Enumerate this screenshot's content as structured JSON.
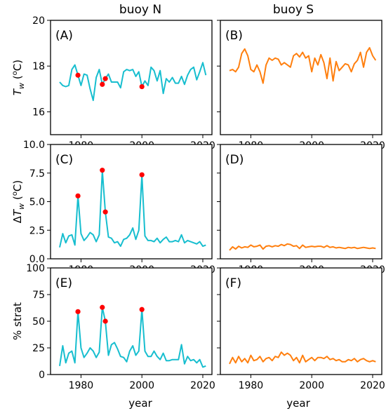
{
  "column_titles": [
    "buoy N",
    "buoy S"
  ],
  "x_label": "year",
  "colors": {
    "buoy_N": "#17becf",
    "buoy_S": "#ff7f0e",
    "marker": "#ff0000"
  },
  "chart_data": [
    {
      "panel": "(A)",
      "column": "buoy N",
      "type": "line",
      "ylabel": "T_w (°C)",
      "ylim": [
        15,
        20
      ],
      "yticks": [
        16,
        18,
        20
      ],
      "xlim": [
        1970,
        2023
      ],
      "xticks": [
        1980,
        2000,
        2020
      ],
      "x": [
        1973,
        1974,
        1975,
        1976,
        1977,
        1978,
        1979,
        1980,
        1981,
        1982,
        1983,
        1984,
        1985,
        1986,
        1987,
        1988,
        1989,
        1990,
        1991,
        1992,
        1993,
        1994,
        1995,
        1996,
        1997,
        1998,
        1999,
        2000,
        2001,
        2002,
        2003,
        2004,
        2005,
        2006,
        2007,
        2008,
        2009,
        2010,
        2011,
        2012,
        2013,
        2014,
        2015,
        2016,
        2017,
        2018,
        2019,
        2020,
        2021
      ],
      "y": [
        17.3,
        17.15,
        17.1,
        17.15,
        17.85,
        18.05,
        17.6,
        17.15,
        17.65,
        17.6,
        17.0,
        16.5,
        17.5,
        17.85,
        17.2,
        17.45,
        17.65,
        17.3,
        17.3,
        17.3,
        17.05,
        17.75,
        17.85,
        17.8,
        17.85,
        17.55,
        17.75,
        17.1,
        17.35,
        17.15,
        17.95,
        17.8,
        17.35,
        17.8,
        16.8,
        17.45,
        17.3,
        17.5,
        17.25,
        17.25,
        17.55,
        17.2,
        17.6,
        17.85,
        17.95,
        17.4,
        17.75,
        18.15,
        17.6
      ],
      "markers": [
        [
          1979,
          17.6
        ],
        [
          1987,
          17.2
        ],
        [
          1988,
          17.45
        ],
        [
          2000,
          17.1
        ]
      ]
    },
    {
      "panel": "(B)",
      "column": "buoy S",
      "type": "line",
      "ylim": [
        15,
        20
      ],
      "yticks": [
        16,
        18,
        20
      ],
      "xlim": [
        1970,
        2023
      ],
      "xticks": [
        1980,
        2000,
        2020
      ],
      "x": [
        1973,
        1974,
        1975,
        1976,
        1977,
        1978,
        1979,
        1980,
        1981,
        1982,
        1983,
        1984,
        1985,
        1986,
        1987,
        1988,
        1989,
        1990,
        1991,
        1992,
        1993,
        1994,
        1995,
        1996,
        1997,
        1998,
        1999,
        2000,
        2001,
        2002,
        2003,
        2004,
        2005,
        2006,
        2007,
        2008,
        2009,
        2010,
        2011,
        2012,
        2013,
        2014,
        2015,
        2016,
        2017,
        2018,
        2019,
        2020,
        2021
      ],
      "y": [
        17.8,
        17.85,
        17.75,
        17.95,
        18.55,
        18.75,
        18.45,
        17.85,
        17.75,
        18.05,
        17.75,
        17.25,
        18.05,
        18.35,
        18.25,
        18.35,
        18.3,
        18.05,
        18.15,
        18.05,
        17.95,
        18.45,
        18.55,
        18.4,
        18.6,
        18.35,
        18.45,
        17.75,
        18.35,
        18.05,
        18.5,
        18.15,
        17.45,
        18.35,
        17.35,
        18.2,
        17.8,
        17.95,
        18.1,
        18.05,
        17.75,
        18.1,
        18.25,
        18.6,
        17.95,
        18.6,
        18.8,
        18.45,
        18.25
      ]
    },
    {
      "panel": "(C)",
      "column": "buoy N",
      "type": "line",
      "ylabel": "ΔT_w (°C)",
      "ylim": [
        0,
        10
      ],
      "yticks": [
        0.0,
        2.5,
        5.0,
        7.5,
        10.0
      ],
      "xlim": [
        1970,
        2023
      ],
      "xticks": [
        1980,
        2000,
        2020
      ],
      "x": [
        1973,
        1974,
        1975,
        1976,
        1977,
        1978,
        1979,
        1980,
        1981,
        1982,
        1983,
        1984,
        1985,
        1986,
        1987,
        1988,
        1989,
        1990,
        1991,
        1992,
        1993,
        1994,
        1995,
        1996,
        1997,
        1998,
        1999,
        2000,
        2001,
        2002,
        2003,
        2004,
        2005,
        2006,
        2007,
        2008,
        2009,
        2010,
        2011,
        2012,
        2013,
        2014,
        2015,
        2016,
        2017,
        2018,
        2019,
        2020,
        2021
      ],
      "y": [
        1.0,
        2.2,
        1.4,
        2.0,
        2.1,
        1.2,
        5.5,
        2.2,
        1.6,
        1.9,
        2.3,
        2.1,
        1.5,
        2.1,
        7.7,
        4.1,
        1.9,
        1.8,
        1.4,
        1.5,
        1.1,
        1.7,
        1.8,
        2.1,
        2.7,
        1.7,
        2.5,
        7.3,
        2.0,
        1.6,
        1.6,
        1.5,
        1.8,
        1.4,
        1.7,
        1.9,
        1.5,
        1.5,
        1.6,
        1.5,
        2.1,
        1.4,
        1.6,
        1.5,
        1.4,
        1.3,
        1.5,
        1.1,
        1.2
      ],
      "markers": [
        [
          1979,
          5.5
        ],
        [
          1987,
          7.75
        ],
        [
          1988,
          4.1
        ],
        [
          2000,
          7.35
        ]
      ]
    },
    {
      "panel": "(D)",
      "column": "buoy S",
      "type": "line",
      "ylim": [
        0,
        10
      ],
      "yticks": [
        0.0,
        2.5,
        5.0,
        7.5,
        10.0
      ],
      "xlim": [
        1970,
        2023
      ],
      "xticks": [
        1980,
        2000,
        2020
      ],
      "x": [
        1973,
        1974,
        1975,
        1976,
        1977,
        1978,
        1979,
        1980,
        1981,
        1982,
        1983,
        1984,
        1985,
        1986,
        1987,
        1988,
        1989,
        1990,
        1991,
        1992,
        1993,
        1994,
        1995,
        1996,
        1997,
        1998,
        1999,
        2000,
        2001,
        2002,
        2003,
        2004,
        2005,
        2006,
        2007,
        2008,
        2009,
        2010,
        2011,
        2012,
        2013,
        2014,
        2015,
        2016,
        2017,
        2018,
        2019,
        2020,
        2021
      ],
      "y": [
        0.75,
        1.05,
        0.85,
        1.1,
        0.95,
        1.05,
        1.0,
        1.2,
        1.05,
        1.1,
        1.2,
        0.85,
        1.1,
        1.15,
        1.05,
        1.15,
        1.1,
        1.25,
        1.15,
        1.3,
        1.25,
        1.1,
        1.15,
        0.9,
        1.2,
        1.0,
        1.05,
        1.1,
        1.05,
        1.1,
        1.1,
        1.0,
        1.15,
        1.0,
        1.05,
        0.95,
        1.0,
        0.95,
        0.9,
        1.0,
        0.95,
        1.0,
        0.9,
        0.95,
        1.0,
        0.95,
        0.9,
        0.95,
        0.9
      ]
    },
    {
      "panel": "(E)",
      "column": "buoy N",
      "type": "line",
      "ylabel": "% strat",
      "ylim": [
        0,
        100
      ],
      "yticks": [
        0,
        25,
        50,
        75,
        100
      ],
      "xlim": [
        1970,
        2023
      ],
      "xticks": [
        1980,
        2000,
        2020
      ],
      "x": [
        1973,
        1974,
        1975,
        1976,
        1977,
        1978,
        1979,
        1980,
        1981,
        1982,
        1983,
        1984,
        1985,
        1986,
        1987,
        1988,
        1989,
        1990,
        1991,
        1992,
        1993,
        1994,
        1995,
        1996,
        1997,
        1998,
        1999,
        2000,
        2001,
        2002,
        2003,
        2004,
        2005,
        2006,
        2007,
        2008,
        2009,
        2010,
        2011,
        2012,
        2013,
        2014,
        2015,
        2016,
        2017,
        2018,
        2019,
        2020,
        2021
      ],
      "y": [
        8,
        27,
        11,
        20,
        22,
        11,
        59,
        25,
        16,
        20,
        25,
        22,
        16,
        21,
        63,
        50,
        18,
        28,
        30,
        24,
        17,
        16,
        12,
        22,
        27,
        18,
        22,
        61,
        22,
        17,
        17,
        22,
        17,
        14,
        20,
        13,
        13,
        14,
        14,
        14,
        28,
        10,
        17,
        13,
        14,
        11,
        14,
        7,
        8
      ],
      "markers": [
        [
          1979,
          59
        ],
        [
          1987,
          63
        ],
        [
          1988,
          50
        ],
        [
          2000,
          61
        ]
      ]
    },
    {
      "panel": "(F)",
      "column": "buoy S",
      "type": "line",
      "ylim": [
        0,
        100
      ],
      "yticks": [
        0,
        25,
        50,
        75,
        100
      ],
      "xlim": [
        1970,
        2023
      ],
      "xticks": [
        1980,
        2000,
        2020
      ],
      "x": [
        1973,
        1974,
        1975,
        1976,
        1977,
        1978,
        1979,
        1980,
        1981,
        1982,
        1983,
        1984,
        1985,
        1986,
        1987,
        1988,
        1989,
        1990,
        1991,
        1992,
        1993,
        1994,
        1995,
        1996,
        1997,
        1998,
        1999,
        2000,
        2001,
        2002,
        2003,
        2004,
        2005,
        2006,
        2007,
        2008,
        2009,
        2010,
        2011,
        2012,
        2013,
        2014,
        2015,
        2016,
        2017,
        2018,
        2019,
        2020,
        2021
      ],
      "y": [
        10,
        16,
        11,
        17,
        12,
        15,
        11,
        18,
        13,
        14,
        17,
        12,
        15,
        16,
        13,
        17,
        16,
        21,
        18,
        20,
        18,
        13,
        16,
        11,
        18,
        12,
        14,
        16,
        13,
        16,
        16,
        15,
        17,
        14,
        15,
        13,
        14,
        12,
        12,
        14,
        13,
        15,
        12,
        14,
        15,
        13,
        12,
        13,
        12
      ]
    }
  ]
}
